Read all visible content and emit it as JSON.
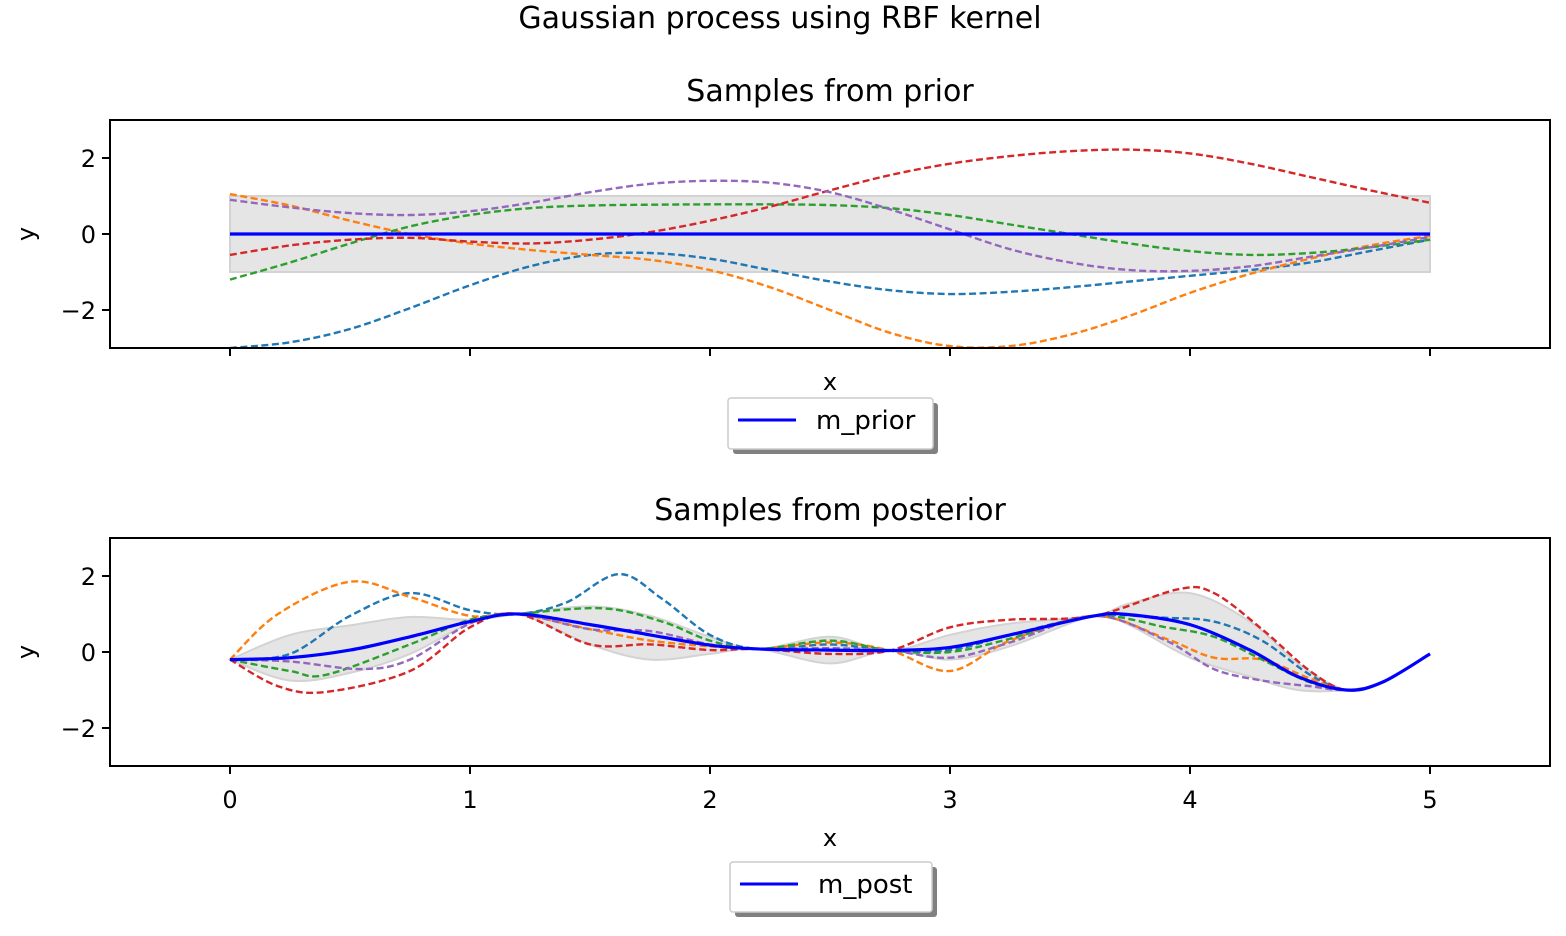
{
  "figure": {
    "suptitle": "Gaussian process using RBF kernel"
  },
  "colors": {
    "mean": "#0000ff",
    "band": "#d3d3d3",
    "samples": [
      "#1f77b4",
      "#ff7f0e",
      "#2ca02c",
      "#d62728",
      "#9467bd"
    ]
  },
  "chart_data": [
    {
      "type": "line",
      "title": "Samples from prior",
      "xlabel": "x",
      "ylabel": "y",
      "xlim": [
        -0.5,
        5.5
      ],
      "ylim": [
        -3,
        3
      ],
      "yticks": [
        -2,
        0,
        2
      ],
      "ytick_labels": [
        "−2",
        "0",
        "2"
      ],
      "xticks": [
        0,
        1,
        2,
        3,
        4,
        5
      ],
      "show_xtick_labels": false,
      "grid": false,
      "legend": {
        "position": "below",
        "entries": [
          "m_prior"
        ]
      },
      "mean": {
        "name": "m_prior",
        "x": [
          0,
          5
        ],
        "y": [
          0,
          0
        ]
      },
      "band": {
        "x": [
          0,
          5
        ],
        "lower": [
          -1,
          -1
        ],
        "upper": [
          1,
          1
        ]
      },
      "samples": [
        {
          "x": [
            0,
            0.25,
            0.5,
            0.75,
            1,
            1.25,
            1.5,
            1.75,
            2,
            2.25,
            2.5,
            2.75,
            3,
            3.25,
            3.5,
            3.75,
            4,
            4.25,
            4.5,
            4.75,
            5
          ],
          "y": [
            -3.0,
            -2.85,
            -2.5,
            -1.95,
            -1.35,
            -0.85,
            -0.55,
            -0.5,
            -0.65,
            -0.95,
            -1.25,
            -1.48,
            -1.58,
            -1.52,
            -1.4,
            -1.25,
            -1.1,
            -0.95,
            -0.75,
            -0.45,
            -0.15
          ]
        },
        {
          "x": [
            0,
            0.25,
            0.5,
            0.75,
            1,
            1.25,
            1.5,
            1.75,
            2,
            2.25,
            2.5,
            2.75,
            3,
            3.25,
            3.5,
            3.75,
            4,
            4.25,
            4.5,
            4.75,
            5
          ],
          "y": [
            1.05,
            0.75,
            0.35,
            0.0,
            -0.25,
            -0.42,
            -0.55,
            -0.68,
            -0.95,
            -1.4,
            -2.0,
            -2.6,
            -2.95,
            -2.95,
            -2.65,
            -2.15,
            -1.55,
            -1.05,
            -0.65,
            -0.3,
            -0.05
          ]
        },
        {
          "x": [
            0,
            0.25,
            0.5,
            0.75,
            1,
            1.25,
            1.5,
            1.75,
            2,
            2.25,
            2.5,
            2.75,
            3,
            3.25,
            3.5,
            3.75,
            4,
            4.25,
            4.5,
            4.75,
            5
          ],
          "y": [
            -1.2,
            -0.75,
            -0.25,
            0.2,
            0.5,
            0.68,
            0.75,
            0.77,
            0.78,
            0.78,
            0.76,
            0.68,
            0.5,
            0.25,
            0.0,
            -0.25,
            -0.45,
            -0.55,
            -0.5,
            -0.35,
            -0.15
          ]
        },
        {
          "x": [
            0,
            0.25,
            0.5,
            0.75,
            1,
            1.25,
            1.5,
            1.75,
            2,
            2.25,
            2.5,
            2.75,
            3,
            3.25,
            3.5,
            3.75,
            4,
            4.25,
            4.5,
            4.75,
            5
          ],
          "y": [
            -0.55,
            -0.3,
            -0.15,
            -0.1,
            -0.2,
            -0.25,
            -0.15,
            0.05,
            0.35,
            0.72,
            1.15,
            1.55,
            1.85,
            2.05,
            2.18,
            2.22,
            2.12,
            1.85,
            1.5,
            1.15,
            0.82
          ]
        },
        {
          "x": [
            0,
            0.25,
            0.5,
            0.75,
            1,
            1.25,
            1.5,
            1.75,
            2,
            2.25,
            2.5,
            2.75,
            3,
            3.25,
            3.5,
            3.75,
            4,
            4.25,
            4.5,
            4.75,
            5
          ],
          "y": [
            0.9,
            0.7,
            0.55,
            0.5,
            0.6,
            0.82,
            1.1,
            1.32,
            1.4,
            1.35,
            1.1,
            0.65,
            0.12,
            -0.4,
            -0.75,
            -0.95,
            -0.97,
            -0.85,
            -0.6,
            -0.35,
            -0.08
          ]
        }
      ]
    },
    {
      "type": "line",
      "title": "Samples from posterior",
      "xlabel": "x",
      "ylabel": "y",
      "xlim": [
        -0.5,
        5.5
      ],
      "ylim": [
        -3,
        3
      ],
      "yticks": [
        -2,
        0,
        2
      ],
      "ytick_labels": [
        "−2",
        "0",
        "2"
      ],
      "xticks": [
        0,
        1,
        2,
        3,
        4,
        5
      ],
      "xtick_labels": [
        "0",
        "1",
        "2",
        "3",
        "4",
        "5"
      ],
      "show_xtick_labels": true,
      "grid": false,
      "legend": {
        "position": "below",
        "entries": [
          "m_post"
        ]
      },
      "mean": {
        "name": "m_post",
        "x": [
          0,
          0.25,
          0.5,
          0.75,
          1,
          1.2,
          1.5,
          1.75,
          2,
          2.2,
          2.5,
          2.75,
          3,
          3.25,
          3.6,
          3.75,
          4,
          4.25,
          4.45,
          4.65,
          4.8,
          5
        ],
        "y": [
          -0.2,
          -0.15,
          0.05,
          0.4,
          0.8,
          1.0,
          0.72,
          0.45,
          0.18,
          0.08,
          0.05,
          0.04,
          0.12,
          0.45,
          0.95,
          0.98,
          0.72,
          0.05,
          -0.65,
          -1.0,
          -0.8,
          -0.05
        ]
      },
      "band": {
        "x": [
          0,
          0.25,
          0.5,
          0.75,
          1,
          1.2,
          1.5,
          1.75,
          2,
          2.2,
          2.5,
          2.75,
          3,
          3.25,
          3.6,
          3.75,
          4,
          4.25,
          4.45,
          4.65,
          4.8,
          5
        ],
        "lower": [
          -0.2,
          -0.75,
          -0.55,
          -0.05,
          0.75,
          1.0,
          0.2,
          -0.2,
          -0.05,
          0.08,
          -0.3,
          0.04,
          -0.2,
          0.15,
          0.95,
          0.7,
          -0.15,
          -0.65,
          -1.0,
          -1.0,
          -0.8,
          -0.05
        ],
        "upper": [
          -0.2,
          0.45,
          0.7,
          0.92,
          0.85,
          1.0,
          1.2,
          0.95,
          0.4,
          0.08,
          0.4,
          0.04,
          0.45,
          0.75,
          0.95,
          1.28,
          1.55,
          0.8,
          -0.3,
          -1.0,
          -0.8,
          -0.05
        ]
      },
      "samples": [
        {
          "x": [
            0,
            0.25,
            0.5,
            0.75,
            1,
            1.2,
            1.4,
            1.62,
            1.8,
            2,
            2.2,
            2.5,
            2.75,
            3,
            3.25,
            3.6,
            3.9,
            4.1,
            4.3,
            4.5,
            4.65,
            4.8,
            5
          ],
          "y": [
            -0.2,
            -0.05,
            0.95,
            1.55,
            1.1,
            1.0,
            1.3,
            2.05,
            1.4,
            0.45,
            0.08,
            0.2,
            0.04,
            0.05,
            0.45,
            0.95,
            0.9,
            0.8,
            0.3,
            -0.6,
            -1.0,
            -0.8,
            -0.05
          ]
        },
        {
          "x": [
            0,
            0.2,
            0.5,
            0.75,
            1,
            1.2,
            1.5,
            1.75,
            2,
            2.2,
            2.5,
            2.75,
            3.0,
            3.25,
            3.6,
            3.9,
            4.1,
            4.3,
            4.5,
            4.65,
            4.8,
            5
          ],
          "y": [
            -0.2,
            1.0,
            1.85,
            1.45,
            0.95,
            1.0,
            0.6,
            0.3,
            0.15,
            0.08,
            0.25,
            0.04,
            -0.5,
            0.3,
            0.95,
            0.35,
            -0.15,
            -0.2,
            -0.7,
            -1.0,
            -0.8,
            -0.05
          ]
        },
        {
          "x": [
            0,
            0.25,
            0.4,
            0.75,
            1,
            1.2,
            1.55,
            1.8,
            2,
            2.2,
            2.5,
            2.75,
            3,
            3.25,
            3.6,
            3.9,
            4.1,
            4.3,
            4.5,
            4.65,
            4.8,
            5
          ],
          "y": [
            -0.2,
            -0.5,
            -0.6,
            0.2,
            0.85,
            1.0,
            1.15,
            0.8,
            0.3,
            0.08,
            0.3,
            0.04,
            0.0,
            0.35,
            0.95,
            0.65,
            0.4,
            -0.2,
            -0.8,
            -1.0,
            -0.8,
            -0.05
          ]
        },
        {
          "x": [
            0,
            0.2,
            0.4,
            0.75,
            1,
            1.2,
            1.5,
            1.75,
            2,
            2.2,
            2.5,
            2.75,
            3,
            3.25,
            3.6,
            3.95,
            4.1,
            4.3,
            4.5,
            4.65,
            4.8,
            5
          ],
          "y": [
            -0.2,
            -0.9,
            -1.05,
            -0.5,
            0.65,
            1.0,
            0.2,
            0.2,
            0.05,
            0.08,
            -0.05,
            0.04,
            0.65,
            0.85,
            0.95,
            1.65,
            1.55,
            0.6,
            -0.5,
            -1.0,
            -0.8,
            -0.05
          ]
        },
        {
          "x": [
            0,
            0.25,
            0.55,
            0.75,
            1,
            1.2,
            1.5,
            1.75,
            2,
            2.2,
            2.5,
            2.75,
            3,
            3.25,
            3.6,
            3.9,
            4.1,
            4.3,
            4.5,
            4.65,
            4.8,
            5
          ],
          "y": [
            -0.2,
            -0.25,
            -0.45,
            -0.2,
            0.75,
            1.0,
            0.6,
            0.55,
            0.2,
            0.08,
            0.1,
            0.04,
            -0.15,
            0.25,
            0.95,
            0.3,
            -0.45,
            -0.75,
            -0.9,
            -1.0,
            -0.8,
            -0.05
          ]
        }
      ]
    }
  ]
}
